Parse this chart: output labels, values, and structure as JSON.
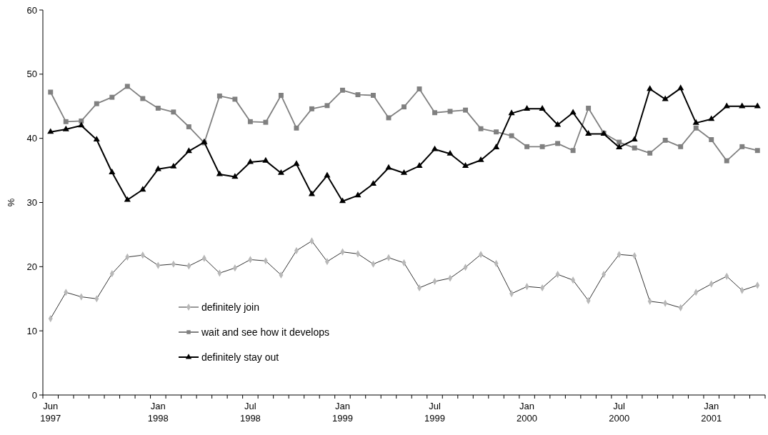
{
  "chart_data": {
    "type": "line",
    "ylabel": "%",
    "ylim": [
      0,
      60
    ],
    "yticks": [
      0,
      10,
      20,
      30,
      40,
      50,
      60
    ],
    "grid": false,
    "legend": "bottom",
    "categories": [
      "Jun 1997",
      null,
      null,
      null,
      null,
      null,
      null,
      "Jan 1998",
      null,
      null,
      null,
      null,
      null,
      "Jul 1998",
      null,
      null,
      null,
      null,
      null,
      "Jan 1999",
      null,
      null,
      null,
      null,
      null,
      "Jul 1999",
      null,
      null,
      null,
      null,
      null,
      "Jan 2000",
      null,
      null,
      null,
      null,
      null,
      "Jul 2000",
      null,
      null,
      null,
      null,
      null,
      "Jan 2001",
      null,
      null,
      null
    ],
    "series": [
      {
        "name": "definitely join",
        "color": "#b8b8b8",
        "marker": "diamond",
        "values": [
          11.9,
          16.0,
          15.3,
          15.0,
          18.9,
          21.5,
          21.8,
          20.2,
          20.4,
          20.1,
          21.3,
          19.0,
          19.8,
          21.1,
          20.9,
          18.7,
          22.5,
          24.0,
          20.8,
          22.3,
          22.0,
          20.4,
          21.4,
          20.6,
          16.7,
          17.7,
          18.2,
          19.9,
          21.9,
          20.5,
          15.8,
          16.9,
          16.7,
          18.8,
          17.9,
          14.7,
          18.8,
          21.9,
          21.7,
          14.6,
          14.3,
          13.6,
          16.0,
          17.3,
          18.5,
          16.3,
          17.1
        ]
      },
      {
        "name": "wait and see how it develops",
        "color": "#808080",
        "marker": "square",
        "values": [
          47.2,
          42.6,
          42.7,
          45.4,
          46.4,
          48.1,
          46.2,
          44.7,
          44.1,
          41.8,
          39.3,
          46.6,
          46.1,
          42.6,
          42.5,
          46.7,
          41.6,
          44.6,
          45.1,
          47.5,
          46.8,
          46.7,
          43.2,
          44.9,
          47.7,
          44.0,
          44.2,
          44.4,
          41.5,
          41.0,
          40.4,
          38.7,
          38.7,
          39.2,
          38.1,
          44.7,
          40.8,
          39.4,
          38.5,
          37.7,
          39.7,
          38.7,
          41.6,
          39.8,
          36.5,
          38.7,
          38.1
        ]
      },
      {
        "name": "definitely stay out",
        "color": "#000000",
        "marker": "triangle",
        "values": [
          41.0,
          41.4,
          42.0,
          39.8,
          34.7,
          30.4,
          32.0,
          35.2,
          35.6,
          38.0,
          39.4,
          34.4,
          34.0,
          36.3,
          36.5,
          34.6,
          36.0,
          31.3,
          34.2,
          30.2,
          31.1,
          32.9,
          35.4,
          34.6,
          35.7,
          38.3,
          37.6,
          35.7,
          36.6,
          38.6,
          43.9,
          44.6,
          44.6,
          42.1,
          44.0,
          40.7,
          40.7,
          38.6,
          39.8,
          47.7,
          46.1,
          47.8,
          42.4,
          43.0,
          45.0,
          45.0,
          45.0
        ]
      }
    ]
  }
}
